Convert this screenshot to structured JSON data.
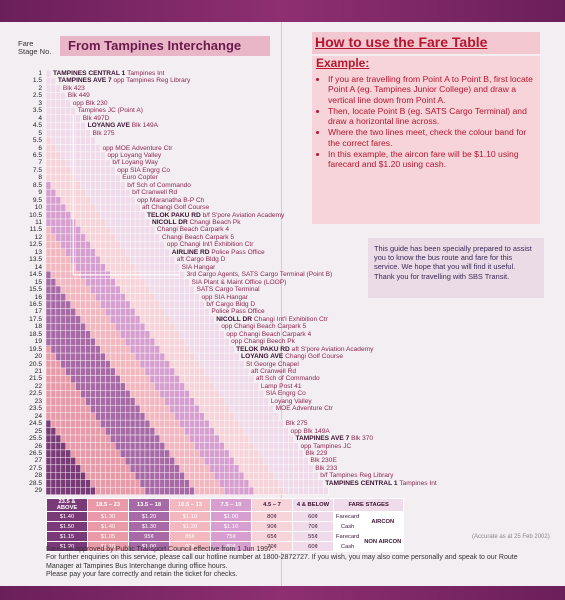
{
  "header": {
    "fare_stage_label_1": "Fare",
    "fare_stage_label_2": "Stage No.",
    "title": "From Tampines Interchange"
  },
  "stages": [
    "1",
    "1.5",
    "2",
    "2.5",
    "3",
    "3.5",
    "4",
    "4.5",
    "5",
    "5.5",
    "6",
    "6.5",
    "7",
    "7.5",
    "8",
    "8.5",
    "9",
    "9.5",
    "10",
    "10.5",
    "11",
    "11.5",
    "12",
    "12.5",
    "13",
    "13.5",
    "14",
    "14.5",
    "15",
    "15.5",
    "16",
    "16.5",
    "17",
    "17.5",
    "18",
    "18.5",
    "19",
    "19.5",
    "20",
    "20.5",
    "21",
    "21.5",
    "22",
    "22.5",
    "23",
    "23.5",
    "24",
    "24.5",
    "25",
    "25.5",
    "26",
    "26.5",
    "27",
    "27.5",
    "28",
    "28.5",
    "29"
  ],
  "stops": [
    {
      "bold": "TAMPINES CENTRAL 1",
      "sub": "Tampines Int"
    },
    {
      "bold": "TAMPINES AVE 7",
      "sub": "opp Tampines Reg Library"
    },
    {
      "bold": "",
      "sub": "Blk 423"
    },
    {
      "bold": "",
      "sub": "Blk 449"
    },
    {
      "bold": "",
      "sub": "opp Blk 230"
    },
    {
      "bold": "",
      "sub": "Tampines JC (Point A)"
    },
    {
      "bold": "",
      "sub": "Blk 497D"
    },
    {
      "bold": "LOYANG AVE",
      "sub": "Blk 149A"
    },
    {
      "bold": "",
      "sub": "Blk 275"
    },
    {
      "bold": "",
      "sub": ""
    },
    {
      "bold": "",
      "sub": "opp MOE Adventure Ctr"
    },
    {
      "bold": "",
      "sub": "opp Loyang Valley"
    },
    {
      "bold": "",
      "sub": "b/f Loyang Way"
    },
    {
      "bold": "",
      "sub": "opp SIA Engrg Co"
    },
    {
      "bold": "",
      "sub": "Euro Copter"
    },
    {
      "bold": "",
      "sub": "b/f Sch of Commando"
    },
    {
      "bold": "",
      "sub": "b/f Cranwell Rd"
    },
    {
      "bold": "",
      "sub": "opp Maranatha B-P Ch"
    },
    {
      "bold": "",
      "sub": "aft Changi Golf Course"
    },
    {
      "bold": "TELOK PAKU RD",
      "sub": "b/f S'pore Aviation Academy"
    },
    {
      "bold": "NICOLL DR",
      "sub": "Changi Beach Pk"
    },
    {
      "bold": "",
      "sub": "Changi Beach Carpark 4"
    },
    {
      "bold": "",
      "sub": "Changi Beach Carpark 5"
    },
    {
      "bold": "",
      "sub": "opp Changi Int'l Exhibition Ctr"
    },
    {
      "bold": "AIRLINE RD",
      "sub": "Police Pass Office"
    },
    {
      "bold": "",
      "sub": "aft Cargo Bldg D"
    },
    {
      "bold": "",
      "sub": "SIA Hangar"
    },
    {
      "bold": "",
      "sub": "3rd Cargo Agents, SATS Cargo Terminal (Point B)"
    },
    {
      "bold": "",
      "sub": "SIA Plant & Maint Office (LOOP)"
    },
    {
      "bold": "",
      "sub": "SATS Cargo Terminal"
    },
    {
      "bold": "",
      "sub": "opp SIA Hangar"
    },
    {
      "bold": "",
      "sub": "b/f Cargo Bldg D"
    },
    {
      "bold": "",
      "sub": "Police Pass Office"
    },
    {
      "bold": "NICOLL DR",
      "sub": "Changi Int'l Exhibition Ctr"
    },
    {
      "bold": "",
      "sub": "opp Changi Beach Carpark 5"
    },
    {
      "bold": "",
      "sub": "opp Changi Beach Carpark 4"
    },
    {
      "bold": "",
      "sub": "opp Changi Beech Pk"
    },
    {
      "bold": "TELOK PAKU RD",
      "sub": "aft S'pore Aviation Academy"
    },
    {
      "bold": "LOYANG AVE",
      "sub": "Changi Golf Course"
    },
    {
      "bold": "",
      "sub": "St George Chapel"
    },
    {
      "bold": "",
      "sub": "aft Cranwell Rd"
    },
    {
      "bold": "",
      "sub": "aft Sch of Commando"
    },
    {
      "bold": "",
      "sub": "Lamp Post 41"
    },
    {
      "bold": "",
      "sub": "SIA Engrg Co"
    },
    {
      "bold": "",
      "sub": "Loyang Valley"
    },
    {
      "bold": "",
      "sub": "MOE Adventure Ctr"
    },
    {
      "bold": "",
      "sub": ""
    },
    {
      "bold": "",
      "sub": "Blk 275"
    },
    {
      "bold": "",
      "sub": "opp Blk 149A"
    },
    {
      "bold": "TAMPINES AVE 7",
      "sub": "Blk 370"
    },
    {
      "bold": "",
      "sub": "opp Tampines JC"
    },
    {
      "bold": "",
      "sub": "Blk 229"
    },
    {
      "bold": "",
      "sub": "Blk 230E"
    },
    {
      "bold": "",
      "sub": "Blk 233"
    },
    {
      "bold": "",
      "sub": "b/f Tampines Reg Library"
    },
    {
      "bold": "TAMPINES CENTRAL 1",
      "sub": "Tampines Int"
    },
    {
      "bold": "",
      "sub": ""
    }
  ],
  "fare_legend": {
    "bands": [
      "23.5 & ABOVE",
      "18.5 – 23",
      "13.5 – 18",
      "10.5 – 13",
      "7.5 – 10",
      "4.5 – 7",
      "4 & BELOW"
    ],
    "band_colors": [
      "#7a3a78",
      "#e89aa8",
      "#a86aa6",
      "#f2b7bf",
      "#d79fcf",
      "#f7d4d9",
      "#efdbe9"
    ],
    "rows": [
      [
        "$1.40",
        "$1.30",
        "$1.20",
        "$1.10",
        "$1.00",
        "80¢",
        "60¢"
      ],
      [
        "$1.50",
        "$1.40",
        "$1.30",
        "$1.20",
        "$1.10",
        "90¢",
        "70¢"
      ],
      [
        "$1.15",
        "$1.05",
        "95¢",
        "85¢",
        "75¢",
        "65¢",
        "55¢"
      ],
      [
        "$1.20",
        "$1.10",
        "$1.00",
        "90¢",
        "80¢",
        "70¢",
        "60¢"
      ]
    ],
    "stage_header": "FARE STAGES",
    "payment": [
      "Farecard",
      "Cash",
      "Farecard",
      "Cash"
    ],
    "aircon": "AIRCON",
    "non_aircon": "NON AIRCON"
  },
  "footnote": {
    "line1": "Fares as approved by Public Transport Council effective from 1 Jun 1997.",
    "line2": "For further enquiries on this service, please call our hotline number at 1800-2872727. If you wish, you may also come personally and speak to our Route Manager at Tampines Bus Interchange during office hours.",
    "line3": "Please pay your fare correctly and retain the ticket for checks.",
    "accuracy": "(Accurate as at 25 Feb 2002)"
  },
  "howto": {
    "title": "How to use the Fare Table",
    "example_label": "Example:",
    "bullets": [
      "If you are travelling from Point A to Point B, first locate Point A (eg. Tampines Junior College) and draw a vertical line down from Point A.",
      "Then, locate Point B (eg. SATS Cargo Terminal) and draw a horizontal line across.",
      "Where the two lines meet, check the colour band for the correct fares.",
      "In this example, the aircon fare will be $1.10 using farecard and $1.20 using cash."
    ]
  },
  "guide": {
    "text": "This guide has been specially prepared to assist you to know the bus route and fare for this service. We hope that you will find it useful.",
    "thanks": "Thank you for travelling with SBS Transit."
  }
}
